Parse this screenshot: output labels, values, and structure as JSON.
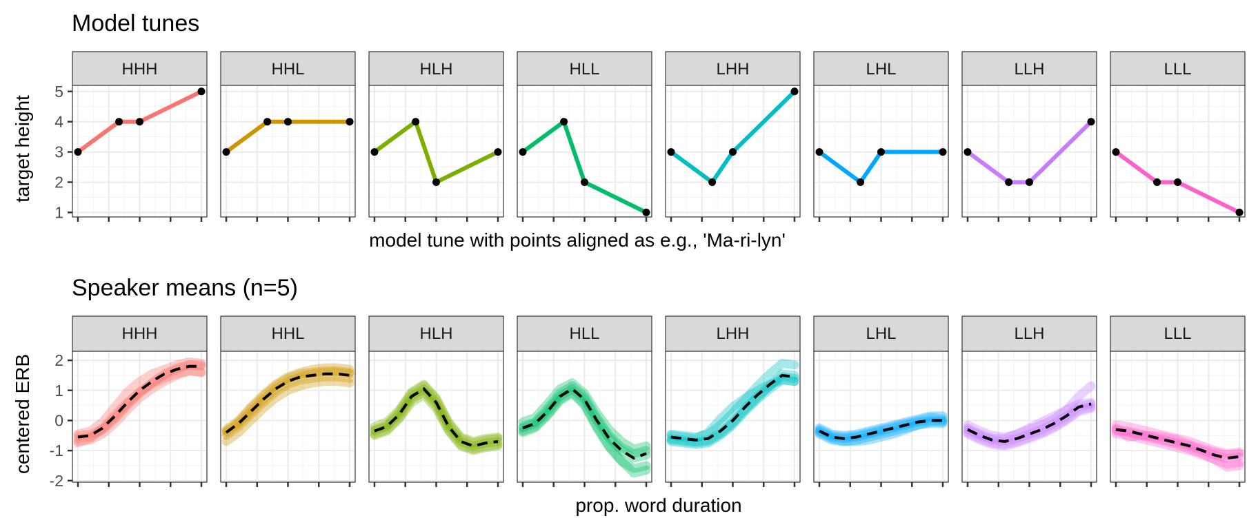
{
  "chart_data": [
    {
      "type": "line",
      "title": "Model tunes",
      "xlabel": "model tune with points aligned as e.g., 'Ma-ri-lyn'",
      "ylabel": "target height",
      "xlim": [
        0,
        1
      ],
      "ylim": [
        0.85,
        5.2
      ],
      "yticks": [
        1,
        2,
        3,
        4,
        5
      ],
      "grid": true,
      "x_tick_labels_shown": false,
      "point_x": [
        0,
        0.333,
        0.5,
        1
      ],
      "panels": [
        {
          "label": "HHH",
          "color": "#F8766D",
          "y": [
            3,
            4,
            4,
            5
          ]
        },
        {
          "label": "HHL",
          "color": "#CD9600",
          "y": [
            3,
            4,
            4,
            4
          ]
        },
        {
          "label": "HLH",
          "color": "#7CAE00",
          "y": [
            3,
            4,
            2,
            3
          ]
        },
        {
          "label": "HLL",
          "color": "#00BE67",
          "y": [
            3,
            4,
            2,
            1
          ]
        },
        {
          "label": "LHH",
          "color": "#00BFC4",
          "y": [
            3,
            2,
            3,
            5
          ]
        },
        {
          "label": "LHL",
          "color": "#00A9FF",
          "y": [
            3,
            2,
            3,
            3
          ]
        },
        {
          "label": "LLH",
          "color": "#C77CFF",
          "y": [
            3,
            2,
            2,
            4
          ]
        },
        {
          "label": "LLL",
          "color": "#FF61CC",
          "y": [
            3,
            2,
            2,
            1
          ]
        }
      ]
    },
    {
      "type": "line",
      "title": "Speaker means (n=5)",
      "xlabel": "prop. word duration",
      "ylabel": "centered ERB",
      "xlim": [
        0,
        1
      ],
      "ylim": [
        -2.05,
        2.3
      ],
      "yticks": [
        -2,
        -1,
        0,
        1,
        2
      ],
      "grid": true,
      "x_tick_labels_shown": false,
      "x": [
        0,
        0.1,
        0.2,
        0.3,
        0.4,
        0.5,
        0.6,
        0.7,
        0.8,
        0.9,
        1
      ],
      "panels": [
        {
          "label": "HHH",
          "color": "#F8766D",
          "mean": [
            -0.55,
            -0.5,
            -0.25,
            0.15,
            0.6,
            1.0,
            1.3,
            1.55,
            1.7,
            1.8,
            1.8
          ],
          "speakers": [
            [
              -0.45,
              -0.35,
              -0.05,
              0.45,
              0.95,
              1.3,
              1.55,
              1.7,
              1.85,
              1.95,
              1.9
            ],
            [
              -0.6,
              -0.55,
              -0.3,
              0.1,
              0.55,
              0.95,
              1.25,
              1.5,
              1.7,
              1.85,
              1.85
            ],
            [
              -0.7,
              -0.65,
              -0.45,
              -0.1,
              0.35,
              0.75,
              1.05,
              1.3,
              1.5,
              1.65,
              1.6
            ],
            [
              -0.5,
              -0.45,
              -0.3,
              0.05,
              0.5,
              0.9,
              1.25,
              1.55,
              1.75,
              1.85,
              1.8
            ],
            [
              -0.75,
              -0.6,
              -0.25,
              0.2,
              0.6,
              0.95,
              1.2,
              1.4,
              1.55,
              1.65,
              1.6
            ]
          ]
        },
        {
          "label": "HHL",
          "color": "#CD9600",
          "mean": [
            -0.4,
            -0.1,
            0.3,
            0.7,
            1.05,
            1.3,
            1.45,
            1.5,
            1.55,
            1.55,
            1.5
          ],
          "speakers": [
            [
              -0.3,
              0.0,
              0.45,
              0.85,
              1.2,
              1.45,
              1.6,
              1.7,
              1.75,
              1.75,
              1.7
            ],
            [
              -0.4,
              -0.1,
              0.3,
              0.7,
              1.05,
              1.3,
              1.45,
              1.55,
              1.6,
              1.6,
              1.55
            ],
            [
              -0.7,
              -0.4,
              0.0,
              0.4,
              0.75,
              1.0,
              1.15,
              1.25,
              1.3,
              1.3,
              1.25
            ],
            [
              -0.35,
              -0.05,
              0.4,
              0.8,
              1.15,
              1.4,
              1.55,
              1.6,
              1.65,
              1.65,
              1.6
            ],
            [
              -0.5,
              -0.2,
              0.2,
              0.6,
              0.95,
              1.2,
              1.35,
              1.4,
              1.45,
              1.45,
              1.4
            ]
          ]
        },
        {
          "label": "HLH",
          "color": "#7CAE00",
          "mean": [
            -0.35,
            -0.2,
            0.2,
            0.8,
            1.05,
            0.6,
            -0.2,
            -0.7,
            -0.85,
            -0.75,
            -0.7
          ],
          "speakers": [
            [
              -0.2,
              -0.05,
              0.35,
              0.95,
              1.2,
              0.75,
              -0.05,
              -0.55,
              -0.7,
              -0.6,
              -0.55
            ],
            [
              -0.35,
              -0.2,
              0.2,
              0.8,
              1.05,
              0.6,
              -0.2,
              -0.7,
              -0.85,
              -0.75,
              -0.7
            ],
            [
              -0.5,
              -0.35,
              0.05,
              0.6,
              0.85,
              0.4,
              -0.35,
              -0.85,
              -1.0,
              -0.9,
              -0.85
            ],
            [
              -0.3,
              -0.15,
              0.3,
              0.9,
              1.15,
              0.7,
              -0.1,
              -0.6,
              -0.75,
              -0.65,
              -0.6
            ],
            [
              -0.45,
              -0.3,
              0.1,
              0.7,
              0.95,
              0.5,
              -0.3,
              -0.8,
              -0.95,
              -0.85,
              -0.8
            ]
          ]
        },
        {
          "label": "HLL",
          "color": "#00BE67",
          "mean": [
            -0.25,
            -0.1,
            0.3,
            0.8,
            1.05,
            0.7,
            0.0,
            -0.6,
            -1.0,
            -1.25,
            -1.1
          ],
          "speakers": [
            [
              -0.05,
              0.1,
              0.55,
              1.05,
              1.25,
              0.9,
              0.25,
              -0.3,
              -0.7,
              -0.95,
              -0.85
            ],
            [
              -0.25,
              -0.1,
              0.3,
              0.8,
              1.05,
              0.7,
              0.0,
              -0.6,
              -1.0,
              -1.25,
              -1.15
            ],
            [
              -0.4,
              -0.25,
              0.15,
              0.65,
              0.9,
              0.5,
              -0.25,
              -0.9,
              -1.35,
              -1.6,
              -1.5
            ],
            [
              -0.2,
              -0.05,
              0.4,
              0.9,
              1.15,
              0.8,
              0.1,
              -0.5,
              -0.9,
              -1.1,
              -1.0
            ],
            [
              -0.35,
              -0.2,
              0.2,
              0.7,
              0.95,
              0.55,
              -0.2,
              -0.85,
              -1.35,
              -1.75,
              -1.65
            ]
          ]
        },
        {
          "label": "LHH",
          "color": "#00BFC4",
          "mean": [
            -0.55,
            -0.6,
            -0.65,
            -0.6,
            -0.35,
            0.0,
            0.45,
            0.85,
            1.2,
            1.5,
            1.45
          ],
          "speakers": [
            [
              -0.45,
              -0.5,
              -0.55,
              -0.45,
              -0.15,
              0.25,
              0.7,
              1.15,
              1.55,
              1.9,
              1.85
            ],
            [
              -0.6,
              -0.65,
              -0.7,
              -0.65,
              -0.4,
              -0.05,
              0.4,
              0.8,
              1.15,
              1.45,
              1.4
            ],
            [
              -0.7,
              -0.75,
              -0.8,
              -0.75,
              -0.5,
              -0.15,
              0.3,
              0.7,
              1.05,
              1.35,
              1.3
            ],
            [
              -0.5,
              -0.55,
              -0.6,
              -0.4,
              0.05,
              0.45,
              0.75,
              1.0,
              1.2,
              1.35,
              1.3
            ],
            [
              -0.65,
              -0.7,
              -0.75,
              -0.7,
              -0.45,
              -0.1,
              0.35,
              0.75,
              1.15,
              1.55,
              1.5
            ]
          ]
        },
        {
          "label": "LHL",
          "color": "#00A9FF",
          "mean": [
            -0.35,
            -0.55,
            -0.6,
            -0.55,
            -0.45,
            -0.35,
            -0.25,
            -0.15,
            -0.05,
            0.0,
            0.0
          ],
          "speakers": [
            [
              -0.25,
              -0.45,
              -0.5,
              -0.45,
              -0.35,
              -0.25,
              -0.15,
              -0.05,
              0.05,
              0.15,
              0.15
            ],
            [
              -0.35,
              -0.55,
              -0.6,
              -0.55,
              -0.45,
              -0.35,
              -0.25,
              -0.15,
              -0.05,
              0.0,
              0.0
            ],
            [
              -0.45,
              -0.65,
              -0.7,
              -0.65,
              -0.55,
              -0.45,
              -0.35,
              -0.25,
              -0.15,
              -0.1,
              -0.1
            ],
            [
              -0.3,
              -0.5,
              -0.55,
              -0.5,
              -0.4,
              -0.3,
              -0.2,
              -0.1,
              0.0,
              0.1,
              0.05
            ],
            [
              -0.4,
              -0.6,
              -0.7,
              -0.7,
              -0.65,
              -0.55,
              -0.45,
              -0.3,
              -0.15,
              -0.05,
              -0.05
            ]
          ]
        },
        {
          "label": "LLH",
          "color": "#C77CFF",
          "mean": [
            -0.3,
            -0.5,
            -0.65,
            -0.7,
            -0.6,
            -0.45,
            -0.3,
            -0.1,
            0.15,
            0.45,
            0.55
          ],
          "speakers": [
            [
              -0.15,
              -0.35,
              -0.5,
              -0.55,
              -0.45,
              -0.3,
              -0.15,
              0.05,
              0.35,
              0.8,
              1.15
            ],
            [
              -0.3,
              -0.5,
              -0.65,
              -0.7,
              -0.6,
              -0.45,
              -0.3,
              -0.1,
              0.15,
              0.45,
              0.55
            ],
            [
              -0.45,
              -0.65,
              -0.8,
              -0.85,
              -0.75,
              -0.6,
              -0.45,
              -0.25,
              0.0,
              0.3,
              0.4
            ],
            [
              -0.25,
              -0.45,
              -0.6,
              -0.6,
              -0.45,
              -0.25,
              -0.05,
              0.15,
              0.35,
              0.55,
              0.6
            ],
            [
              -0.4,
              -0.6,
              -0.75,
              -0.8,
              -0.7,
              -0.55,
              -0.4,
              -0.2,
              0.05,
              0.35,
              0.45
            ]
          ]
        },
        {
          "label": "LLL",
          "color": "#FF61CC",
          "mean": [
            -0.3,
            -0.35,
            -0.45,
            -0.55,
            -0.65,
            -0.75,
            -0.85,
            -1.0,
            -1.15,
            -1.25,
            -1.2
          ],
          "speakers": [
            [
              -0.15,
              -0.2,
              -0.3,
              -0.4,
              -0.5,
              -0.6,
              -0.7,
              -0.85,
              -1.0,
              -1.1,
              -1.05
            ],
            [
              -0.3,
              -0.35,
              -0.45,
              -0.55,
              -0.65,
              -0.75,
              -0.85,
              -1.0,
              -1.15,
              -1.25,
              -1.2
            ],
            [
              -0.45,
              -0.5,
              -0.6,
              -0.7,
              -0.8,
              -0.9,
              -1.0,
              -1.15,
              -1.3,
              -1.45,
              -1.4
            ],
            [
              -0.25,
              -0.55,
              -0.5,
              -0.5,
              -0.55,
              -0.65,
              -0.8,
              -0.95,
              -1.05,
              -1.15,
              -1.1
            ],
            [
              -0.35,
              -0.4,
              -0.5,
              -0.6,
              -0.7,
              -0.8,
              -0.95,
              -1.1,
              -1.3,
              -1.55,
              -1.5
            ]
          ]
        }
      ]
    }
  ]
}
